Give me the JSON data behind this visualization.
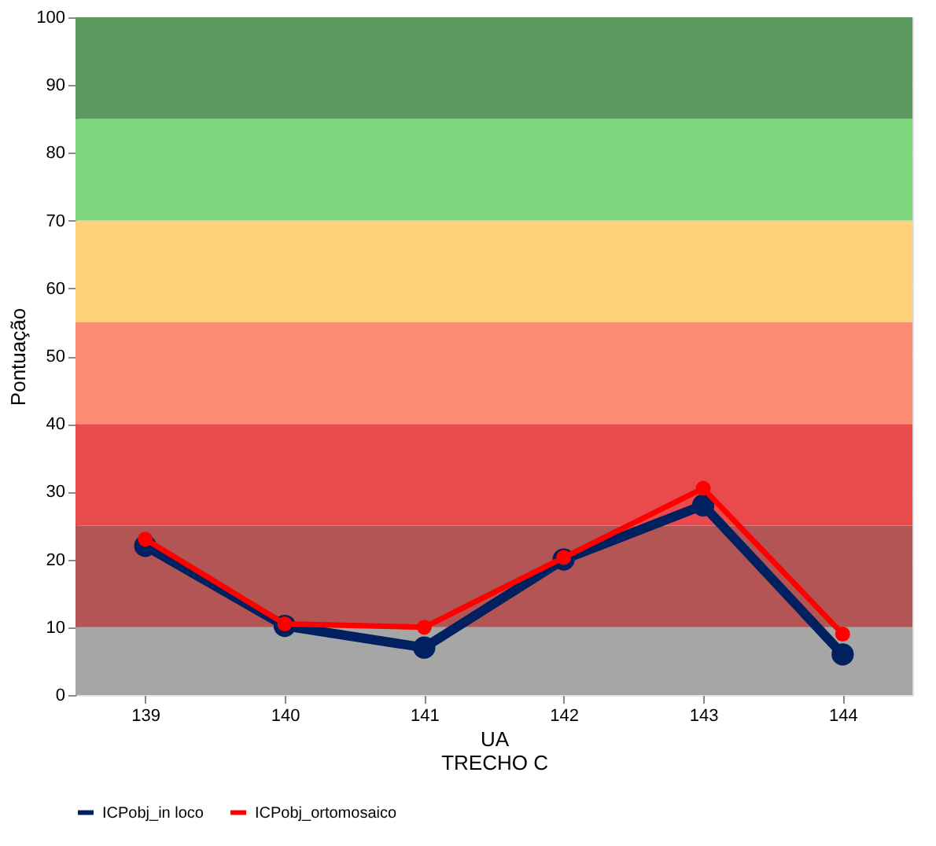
{
  "chart_data": {
    "type": "line",
    "categories": [
      "139",
      "140",
      "141",
      "142",
      "143",
      "144"
    ],
    "series": [
      {
        "name": "ICPobj_in loco",
        "color": "#002060",
        "values": [
          22,
          10.2,
          7,
          20,
          28,
          6
        ]
      },
      {
        "name": "ICPobj_ortomosaico",
        "color": "#ff0000",
        "values": [
          23,
          10.5,
          10,
          20.3,
          30.5,
          9
        ]
      }
    ],
    "xlabel": "UA\nTRECHO C",
    "ylabel": "Pontuação",
    "ylim": [
      0,
      100
    ],
    "yticks": [
      0,
      10,
      20,
      30,
      40,
      50,
      60,
      70,
      80,
      90,
      100
    ],
    "bands": [
      {
        "axis": "y",
        "from": 0,
        "to": 10,
        "color": "#a6a6a6"
      },
      {
        "axis": "y",
        "from": 10,
        "to": 25,
        "color": "#b35555"
      },
      {
        "axis": "y",
        "from": 25,
        "to": 40,
        "color": "#e94a4c"
      },
      {
        "axis": "y",
        "from": 40,
        "to": 55,
        "color": "#fa8c74"
      },
      {
        "axis": "y",
        "from": 55,
        "to": 70,
        "color": "#fdd279"
      },
      {
        "axis": "y",
        "from": 70,
        "to": 85,
        "color": "#7fd77f"
      },
      {
        "axis": "y",
        "from": 85,
        "to": 100,
        "color": "#5a9a5f"
      }
    ],
    "grid": "y",
    "legend": "bottom",
    "marker": "circle",
    "line_style": "solid"
  }
}
